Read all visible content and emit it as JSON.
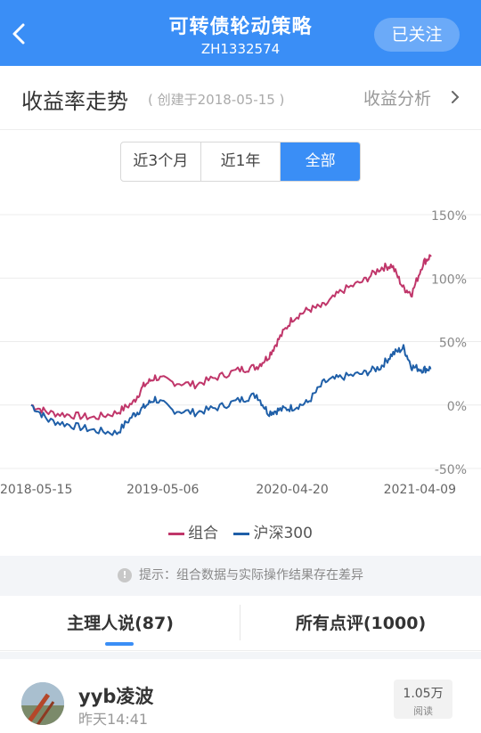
{
  "header": {
    "title": "可转债轮动策略",
    "code": "ZH1332574",
    "follow_label": "已关注"
  },
  "section": {
    "title": "收益率走势",
    "created": "( 创建于2018-05-15 )",
    "link": "收益分析"
  },
  "ranges": [
    "近3个月",
    "近1年",
    "全部"
  ],
  "selected_range": "全部",
  "chart_data": {
    "type": "line",
    "x_ticks": [
      "2018-05-15",
      "2019-05-06",
      "2020-04-20",
      "2021-04-09"
    ],
    "y_ticks": [
      "150%",
      "100%",
      "50%",
      "0%",
      "-50%"
    ],
    "ylim": [
      -50,
      150
    ],
    "series": [
      {
        "name": "组合",
        "color": "#c0366a",
        "x": [
          "2018-05-15",
          "2018-07-01",
          "2018-09-01",
          "2018-11-01",
          "2019-01-02",
          "2019-02-15",
          "2019-03-15",
          "2019-04-15",
          "2019-06-01",
          "2019-08-01",
          "2019-10-01",
          "2019-12-01",
          "2020-01-15",
          "2020-02-15",
          "2020-03-15",
          "2020-04-20",
          "2020-06-01",
          "2020-07-15",
          "2020-09-01",
          "2020-11-01",
          "2020-12-15",
          "2021-01-15",
          "2021-02-15",
          "2021-03-10",
          "2021-04-09",
          "2021-05-01"
        ],
        "values": [
          0,
          -6,
          -8,
          -10,
          -6,
          2,
          15,
          22,
          18,
          16,
          22,
          28,
          30,
          38,
          52,
          68,
          75,
          78,
          90,
          98,
          108,
          110,
          92,
          88,
          112,
          118
        ]
      },
      {
        "name": "沪深300",
        "color": "#1f5fa8",
        "x": [
          "2018-05-15",
          "2018-07-01",
          "2018-09-01",
          "2018-11-01",
          "2019-01-02",
          "2019-02-15",
          "2019-03-15",
          "2019-04-15",
          "2019-06-01",
          "2019-08-01",
          "2019-10-01",
          "2019-12-01",
          "2020-01-15",
          "2020-02-15",
          "2020-03-15",
          "2020-04-20",
          "2020-06-01",
          "2020-07-15",
          "2020-09-01",
          "2020-11-01",
          "2020-12-15",
          "2021-01-15",
          "2021-02-15",
          "2021-03-10",
          "2021-04-09",
          "2021-05-01"
        ],
        "values": [
          0,
          -12,
          -16,
          -20,
          -22,
          -8,
          -2,
          5,
          -4,
          -6,
          -2,
          4,
          8,
          -6,
          -4,
          -2,
          2,
          18,
          22,
          25,
          30,
          40,
          45,
          30,
          28,
          29
        ]
      }
    ]
  },
  "legend": [
    "组合",
    "沪深300"
  ],
  "notice": "提示：组合数据与实际操作结果存在差异",
  "tabs": {
    "left": "主理人说(87)",
    "right": "所有点评(1000)"
  },
  "post": {
    "name": "yyb凌波",
    "time": "昨天14:41",
    "reads": "1.05万",
    "reads_label": "阅读"
  }
}
